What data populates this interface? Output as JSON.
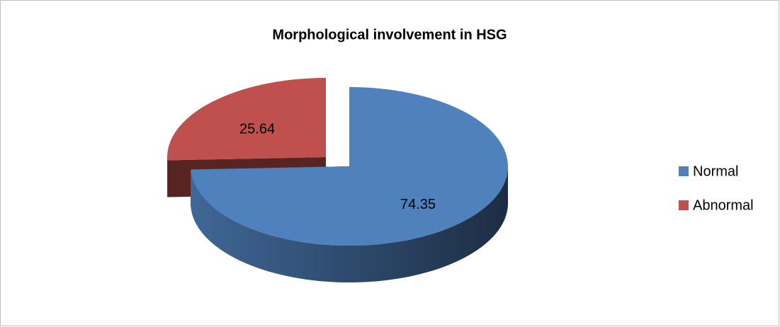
{
  "chart_data": {
    "type": "pie",
    "title": "Morphological involvement in HSG",
    "categories": [
      "Normal",
      "Abnormal"
    ],
    "values": [
      74.35,
      25.64
    ],
    "colors": [
      "#4f81bd",
      "#c0504d"
    ],
    "legend": "right"
  }
}
